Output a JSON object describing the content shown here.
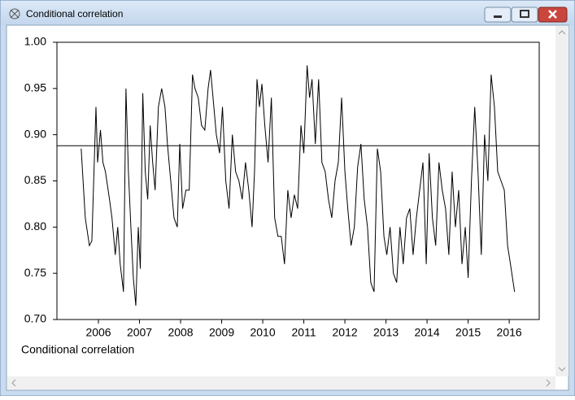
{
  "window_title": "Conditional correlation",
  "chart_data": {
    "type": "line",
    "x": [
      2006.08,
      2006.18,
      2006.28,
      2006.34,
      2006.44,
      2006.48,
      2006.55,
      2006.61,
      2006.67,
      2006.77,
      2006.83,
      2006.91,
      2006.97,
      2007.03,
      2007.11,
      2007.17,
      2007.23,
      2007.29,
      2007.35,
      2007.41,
      2007.47,
      2007.52,
      2007.58,
      2007.64,
      2007.7,
      2007.76,
      2007.82,
      2007.88,
      2007.96,
      2008.04,
      2008.12,
      2008.18,
      2008.26,
      2008.34,
      2008.42,
      2008.48,
      2008.55,
      2008.63,
      2008.71,
      2008.79,
      2008.85,
      2008.93,
      2009.01,
      2009.09,
      2009.17,
      2009.23,
      2009.29,
      2009.37,
      2009.45,
      2009.52,
      2009.6,
      2009.68,
      2009.76,
      2009.84,
      2009.92,
      2010.0,
      2010.08,
      2010.16,
      2010.24,
      2010.3,
      2010.36,
      2010.42,
      2010.48,
      2010.55,
      2010.63,
      2010.71,
      2010.79,
      2010.87,
      2010.95,
      2011.03,
      2011.11,
      2011.19,
      2011.27,
      2011.35,
      2011.43,
      2011.5,
      2011.58,
      2011.64,
      2011.7,
      2011.78,
      2011.86,
      2011.94,
      2012.02,
      2012.1,
      2012.18,
      2012.26,
      2012.34,
      2012.42,
      2012.5,
      2012.57,
      2012.65,
      2012.73,
      2012.81,
      2012.89,
      2012.97,
      2013.05,
      2013.13,
      2013.21,
      2013.29,
      2013.37,
      2013.45,
      2013.52,
      2013.6,
      2013.68,
      2013.76,
      2013.84,
      2013.92,
      2014.0,
      2014.08,
      2014.16,
      2014.24,
      2014.32,
      2014.4,
      2014.48,
      2014.55,
      2014.63,
      2014.71,
      2014.79,
      2014.87,
      2014.95,
      2015.03,
      2015.11,
      2015.19,
      2015.27,
      2015.35,
      2015.43,
      2015.5,
      2015.58,
      2015.66,
      2015.74,
      2015.82,
      2015.9,
      2015.98,
      2016.06,
      2016.14,
      2016.22,
      2016.3,
      2016.38,
      2016.46,
      2016.53,
      2016.63
    ],
    "series": [
      {
        "name": "Conditional correlation",
        "color": "#000000",
        "values": [
          0.885,
          0.81,
          0.78,
          0.785,
          0.93,
          0.87,
          0.905,
          0.87,
          0.86,
          0.83,
          0.81,
          0.77,
          0.8,
          0.76,
          0.73,
          0.95,
          0.86,
          0.8,
          0.745,
          0.715,
          0.8,
          0.755,
          0.945,
          0.86,
          0.83,
          0.91,
          0.87,
          0.84,
          0.93,
          0.95,
          0.93,
          0.89,
          0.85,
          0.81,
          0.8,
          0.89,
          0.82,
          0.84,
          0.84,
          0.965,
          0.95,
          0.94,
          0.91,
          0.905,
          0.95,
          0.97,
          0.94,
          0.9,
          0.88,
          0.93,
          0.85,
          0.82,
          0.9,
          0.86,
          0.85,
          0.83,
          0.87,
          0.84,
          0.8,
          0.86,
          0.96,
          0.93,
          0.955,
          0.91,
          0.87,
          0.94,
          0.81,
          0.79,
          0.79,
          0.76,
          0.84,
          0.81,
          0.835,
          0.82,
          0.91,
          0.88,
          0.975,
          0.94,
          0.96,
          0.89,
          0.96,
          0.87,
          0.86,
          0.83,
          0.81,
          0.85,
          0.87,
          0.94,
          0.86,
          0.82,
          0.78,
          0.8,
          0.865,
          0.89,
          0.83,
          0.8,
          0.74,
          0.73,
          0.885,
          0.86,
          0.79,
          0.77,
          0.8,
          0.75,
          0.74,
          0.8,
          0.76,
          0.81,
          0.82,
          0.77,
          0.81,
          0.84,
          0.87,
          0.76,
          0.88,
          0.81,
          0.78,
          0.87,
          0.84,
          0.82,
          0.77,
          0.86,
          0.8,
          0.84,
          0.76,
          0.8,
          0.745,
          0.85,
          0.93,
          0.86,
          0.77,
          0.9,
          0.85,
          0.965,
          0.93,
          0.86,
          0.85,
          0.84,
          0.78,
          0.76,
          0.73
        ]
      }
    ],
    "reference_line": 0.888,
    "xlim": [
      2005.49,
      2017.23
    ],
    "xticks": [
      {
        "value": 2006.5,
        "label": "2006"
      },
      {
        "value": 2007.5,
        "label": "2007"
      },
      {
        "value": 2008.5,
        "label": "2008"
      },
      {
        "value": 2009.5,
        "label": "2009"
      },
      {
        "value": 2010.5,
        "label": "2010"
      },
      {
        "value": 2011.5,
        "label": "2011"
      },
      {
        "value": 2012.5,
        "label": "2012"
      },
      {
        "value": 2013.5,
        "label": "2013"
      },
      {
        "value": 2014.5,
        "label": "2014"
      },
      {
        "value": 2015.5,
        "label": "2015"
      },
      {
        "value": 2016.5,
        "label": "2016"
      }
    ],
    "ylim": [
      0.7,
      1.0
    ],
    "yticks": [
      {
        "value": 0.7,
        "label": "0.70"
      },
      {
        "value": 0.75,
        "label": "0.75"
      },
      {
        "value": 0.8,
        "label": "0.80"
      },
      {
        "value": 0.85,
        "label": "0.85"
      },
      {
        "value": 0.9,
        "label": "0.90"
      },
      {
        "value": 0.95,
        "label": "0.95"
      },
      {
        "value": 1.0,
        "label": "1.00"
      }
    ]
  }
}
